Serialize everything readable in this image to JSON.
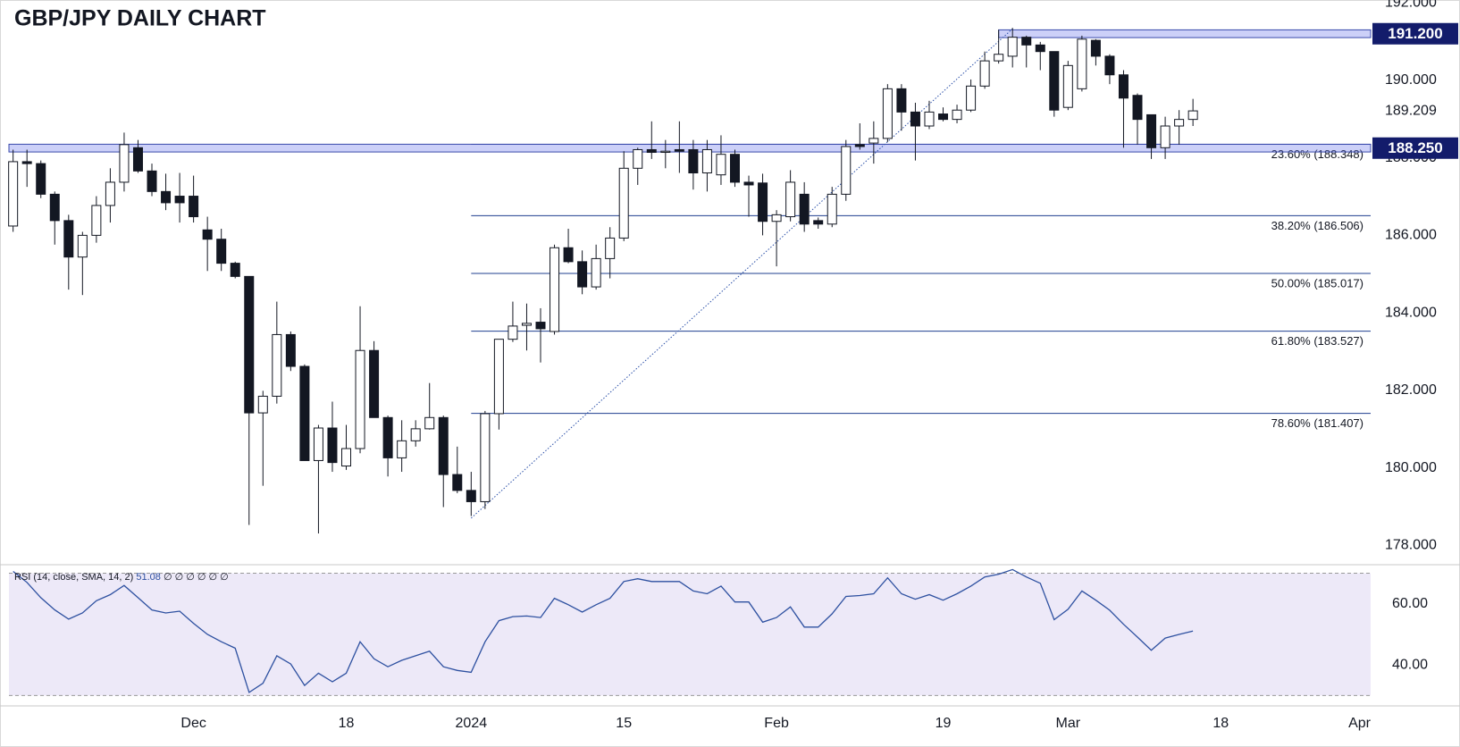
{
  "chart_data": [
    {
      "type": "candlestick",
      "title": "GBP/JPY DAILY CHART",
      "categories": [
        null,
        null,
        null,
        null,
        null,
        null,
        null,
        null,
        null,
        null,
        null,
        null,
        null,
        null,
        null,
        null,
        null,
        null,
        null,
        null,
        null,
        null,
        null,
        null,
        null,
        null,
        null,
        null,
        null,
        null,
        null,
        null,
        null,
        null,
        null,
        null,
        null,
        null,
        null,
        null,
        null,
        null,
        null,
        null,
        null,
        null,
        null,
        null,
        null,
        null,
        null,
        null,
        null,
        null,
        null,
        null,
        null,
        null,
        null,
        null,
        null,
        null,
        null,
        null,
        null,
        null,
        null,
        null,
        null,
        null,
        null,
        null,
        null,
        null,
        null,
        null,
        null,
        null,
        null,
        null,
        null,
        null,
        null,
        null,
        null,
        null
      ],
      "open": [
        186.24,
        187.9,
        187.85,
        187.06,
        186.38,
        185.44,
        186.0,
        186.77,
        187.37,
        188.26,
        187.66,
        187.13,
        187.01,
        187.01,
        186.14,
        185.9,
        185.28,
        184.94,
        181.42,
        181.85,
        183.44,
        182.62,
        180.19,
        181.03,
        180.05,
        180.5,
        183.03,
        181.3,
        180.26,
        180.7,
        181.01,
        181.3,
        179.83,
        179.42,
        179.13,
        181.4,
        183.32,
        183.68,
        183.76,
        183.52,
        185.68,
        185.32,
        184.67,
        185.4,
        185.93,
        187.73,
        188.21,
        188.14,
        188.21,
        188.21,
        187.61,
        187.56,
        188.09,
        187.37,
        187.35,
        186.36,
        186.48,
        187.06,
        186.38,
        186.29,
        187.06,
        188.34,
        188.38,
        188.5,
        189.78,
        189.18,
        188.82,
        189.13,
        188.99,
        189.23,
        189.85,
        190.5,
        190.62,
        191.11,
        190.91,
        190.74,
        189.3,
        189.78,
        191.03,
        190.62,
        190.14,
        189.61,
        189.11,
        188.26,
        188.82,
        188.99
      ],
      "high": [
        188.21,
        188.21,
        187.93,
        187.13,
        186.53,
        186.09,
        187.01,
        187.73,
        188.65,
        188.46,
        187.85,
        187.59,
        187.61,
        187.54,
        186.48,
        186.17,
        185.32,
        184.94,
        181.99,
        184.29,
        183.52,
        182.67,
        181.11,
        181.71,
        181.11,
        184.17,
        183.27,
        181.35,
        181.23,
        181.23,
        182.19,
        181.35,
        180.55,
        179.9,
        181.47,
        183.32,
        184.29,
        184.24,
        184.12,
        185.76,
        186.17,
        185.61,
        185.76,
        186.21,
        188.17,
        188.26,
        188.94,
        188.46,
        188.94,
        188.46,
        188.46,
        188.58,
        188.21,
        187.54,
        187.59,
        186.65,
        187.68,
        187.37,
        186.46,
        187.25,
        188.46,
        188.89,
        188.94,
        189.9,
        189.9,
        189.42,
        189.47,
        189.3,
        189.37,
        190.02,
        190.74,
        191.3,
        191.35,
        191.15,
        190.99,
        190.74,
        190.5,
        191.15,
        191.06,
        190.67,
        190.26,
        189.66,
        189.11,
        189.06,
        189.23,
        189.52
      ],
      "low": [
        186.09,
        187.25,
        186.96,
        185.76,
        184.6,
        184.46,
        185.81,
        186.33,
        187.13,
        187.61,
        187.01,
        186.65,
        186.33,
        186.33,
        185.08,
        185.08,
        184.89,
        178.53,
        179.54,
        181.66,
        182.5,
        180.19,
        178.31,
        179.9,
        179.95,
        180.38,
        181.3,
        179.78,
        179.9,
        180.55,
        180.99,
        178.99,
        179.35,
        178.76,
        178.94,
        180.99,
        183.25,
        183.03,
        182.72,
        183.44,
        185.28,
        184.48,
        184.6,
        184.89,
        185.85,
        187.3,
        187.97,
        187.73,
        187.61,
        187.18,
        187.13,
        187.3,
        187.25,
        186.48,
        186.0,
        185.2,
        186.36,
        186.09,
        186.17,
        186.21,
        186.89,
        188.21,
        187.85,
        188.41,
        188.7,
        187.93,
        188.74,
        188.94,
        188.89,
        189.18,
        189.78,
        190.43,
        190.33,
        190.33,
        190.26,
        189.06,
        189.23,
        189.71,
        190.38,
        189.9,
        188.26,
        188.34,
        187.97,
        187.97,
        188.34,
        188.82
      ],
      "close": [
        187.9,
        187.85,
        187.06,
        186.38,
        185.44,
        186.0,
        186.77,
        187.37,
        188.34,
        187.66,
        187.13,
        186.84,
        186.84,
        186.48,
        185.9,
        185.28,
        184.94,
        181.42,
        181.85,
        183.44,
        182.62,
        180.19,
        181.03,
        180.14,
        180.5,
        183.03,
        181.3,
        180.26,
        180.7,
        181.01,
        181.3,
        179.83,
        179.42,
        179.13,
        181.4,
        183.32,
        183.66,
        183.73,
        183.59,
        185.68,
        185.32,
        184.67,
        185.4,
        185.93,
        187.73,
        188.21,
        188.14,
        188.17,
        188.17,
        187.61,
        188.21,
        188.09,
        187.37,
        187.3,
        186.36,
        186.53,
        187.37,
        186.29,
        186.29,
        187.06,
        188.29,
        188.29,
        188.5,
        189.78,
        189.18,
        188.82,
        189.18,
        188.99,
        189.23,
        189.85,
        190.5,
        190.67,
        191.11,
        190.91,
        190.74,
        189.23,
        190.38,
        191.06,
        190.62,
        190.14,
        189.54,
        188.99,
        188.26,
        188.82,
        188.99,
        189.21
      ],
      "up_color": "#ffffff",
      "down_color": "#131722",
      "xlim": [
        -0.3,
        97.8
      ],
      "xticks": [
        {
          "value": 13,
          "label": "Dec"
        },
        {
          "value": 24,
          "label": "18"
        },
        {
          "value": 33,
          "label": "2024"
        },
        {
          "value": 44,
          "label": "15"
        },
        {
          "value": 55,
          "label": "Feb"
        },
        {
          "value": 67,
          "label": "19"
        },
        {
          "value": 76,
          "label": "Mar"
        },
        {
          "value": 87,
          "label": "18"
        },
        {
          "value": 97,
          "label": "Apr"
        }
      ],
      "ylim": [
        177.55,
        192.07
      ],
      "yticks": [
        {
          "value": 178,
          "label": "178.000"
        },
        {
          "value": 180,
          "label": "180.000"
        },
        {
          "value": 182,
          "label": "182.000"
        },
        {
          "value": 184,
          "label": "184.000"
        },
        {
          "value": 186,
          "label": "186.000"
        },
        {
          "value": 188,
          "label": "188.000"
        },
        {
          "value": 190,
          "label": "190.000"
        },
        {
          "value": 192,
          "label": "192.000"
        }
      ],
      "last_price": 189.209,
      "zones": [
        {
          "value": 191.2,
          "label": "191.200",
          "start": 71
        },
        {
          "value": 188.25,
          "label": "188.250",
          "start": -0.3
        }
      ],
      "fib_start": 33,
      "fib_levels": [
        {
          "value": 188.348,
          "label": "23.60% (188.348)"
        },
        {
          "value": 186.506,
          "label": "38.20% (186.506)"
        },
        {
          "value": 185.017,
          "label": "50.00% (185.017)"
        },
        {
          "value": 183.527,
          "label": "61.80% (183.527)"
        },
        {
          "value": 181.407,
          "label": "78.60% (181.407)"
        }
      ],
      "trendline": {
        "x": [
          33,
          72
        ],
        "values": [
          178.706,
          191.326
        ]
      }
    },
    {
      "type": "line",
      "series": [
        {
          "name": "RSI (14, close, SMA, 14, 2)",
          "color": "#2d50a0",
          "values": [
            70.6,
            67,
            62,
            58,
            55,
            57,
            61,
            63,
            66,
            62,
            58,
            57,
            57.6,
            53.6,
            50,
            47.6,
            45.5,
            31,
            34,
            43,
            40.3,
            33.3,
            37.3,
            34.5,
            37.3,
            47.6,
            42,
            39.4,
            41.5,
            43,
            44.5,
            39.4,
            38.2,
            37.6,
            47.6,
            54.5,
            55.8,
            56,
            55.5,
            61.8,
            59.7,
            57.3,
            59.7,
            61.8,
            67.3,
            68.2,
            67.3,
            67.3,
            67.3,
            64.2,
            63.3,
            65.8,
            60.6,
            60.6,
            54,
            55.5,
            59,
            52.4,
            52.4,
            56.7,
            62.4,
            62.7,
            63.3,
            68.5,
            63.3,
            61.5,
            63,
            61.2,
            63.3,
            65.8,
            68.8,
            69.7,
            71.2,
            68.8,
            66.7,
            54.8,
            58.2,
            64.2,
            61.2,
            57.9,
            53.3,
            49.1,
            44.8,
            48.8,
            50,
            51.08
          ]
        }
      ],
      "status": "∅ ∅ ∅ ∅ ∅ ∅",
      "ylim": [
        26.6,
        72.5
      ],
      "yticks": [
        {
          "value": 40,
          "label": "40.00"
        },
        {
          "value": 60,
          "label": "60.00"
        }
      ],
      "bands": [
        30,
        70
      ]
    }
  ]
}
